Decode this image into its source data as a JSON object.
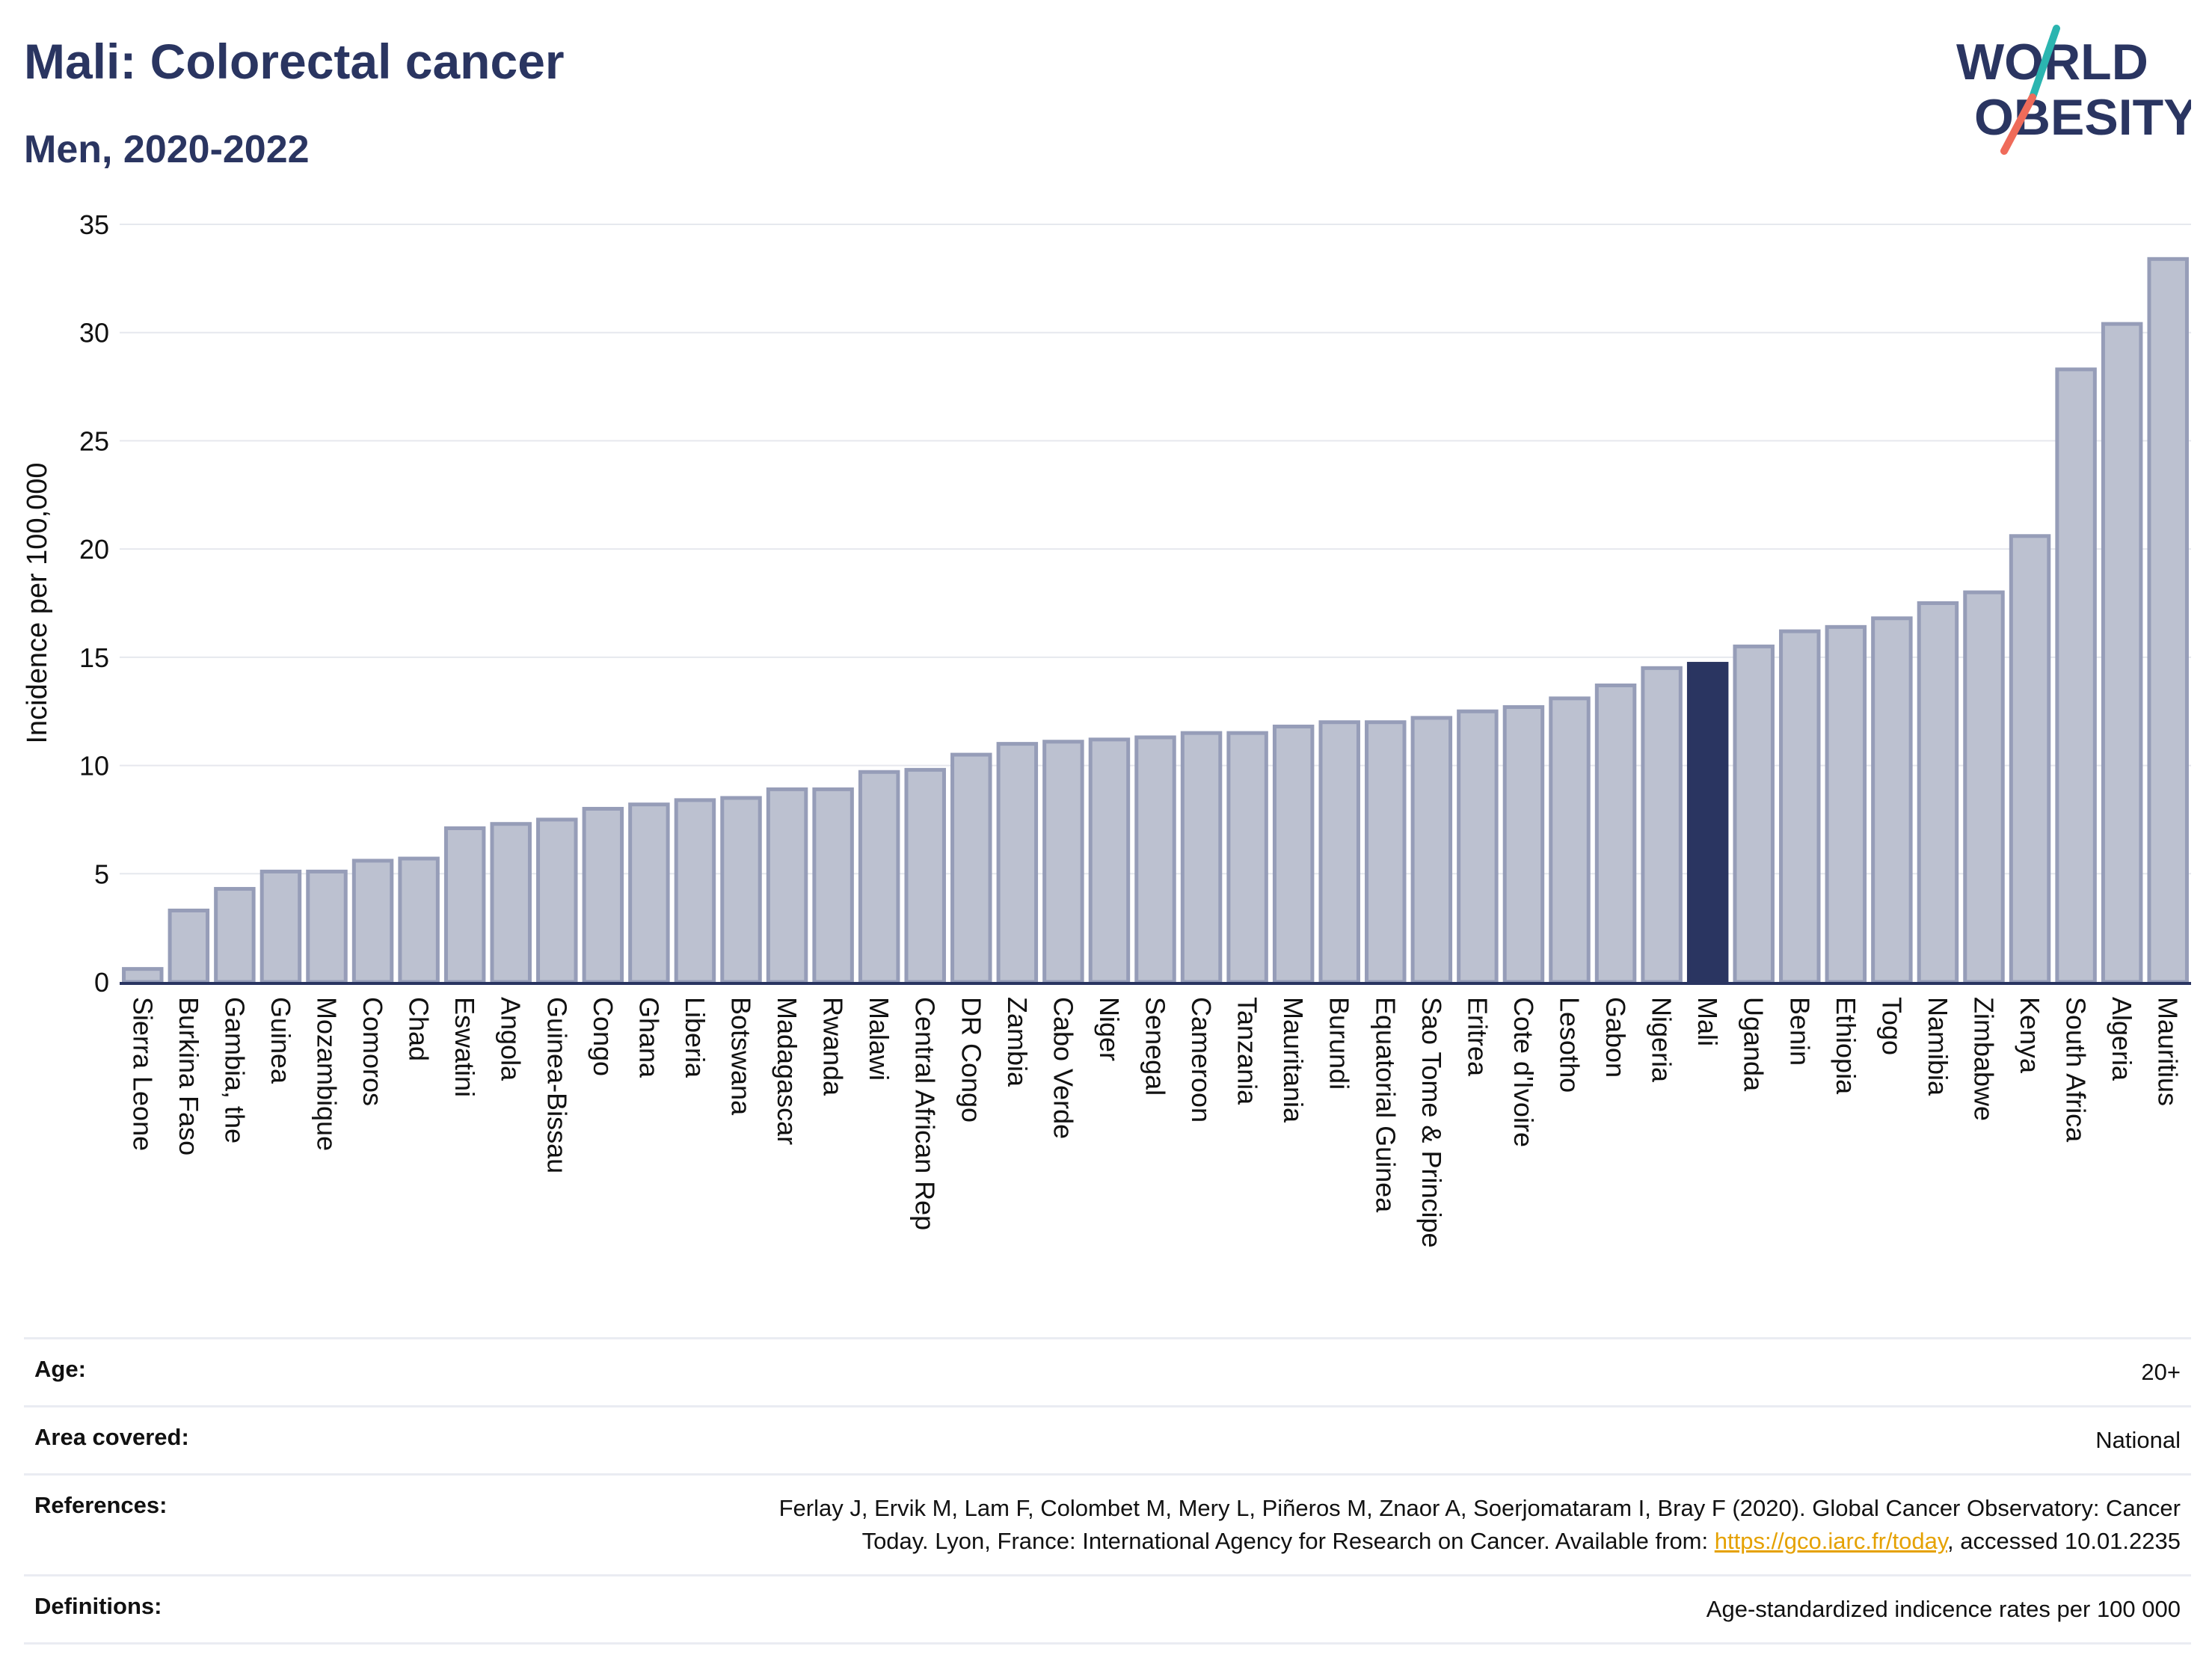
{
  "header": {
    "title": "Mali: Colorectal cancer",
    "subtitle": "Men, 2020-2022"
  },
  "logo": {
    "line1": "WORLD",
    "line2": "OBESITY"
  },
  "colors": {
    "bar": "#bcc1d0",
    "bar_stroke": "#969db8",
    "highlight": "#2a3561",
    "grid": "#e6e8ee",
    "axis": "#2a3561",
    "link": "#e5a100"
  },
  "chart_data": {
    "type": "bar",
    "ylabel": "Incidence per 100,000",
    "ylim": [
      0,
      35
    ],
    "yticks": [
      0,
      5,
      10,
      15,
      20,
      25,
      30,
      35
    ],
    "grid": true,
    "highlight": "Mali",
    "categories": [
      "Sierra Leone",
      "Burkina Faso",
      "Gambia, the",
      "Guinea",
      "Mozambique",
      "Comoros",
      "Chad",
      "Eswatini",
      "Angola",
      "Guinea-Bissau",
      "Congo",
      "Ghana",
      "Liberia",
      "Botswana",
      "Madagascar",
      "Rwanda",
      "Malawi",
      "Central African Rep",
      "DR Congo",
      "Zambia",
      "Cabo Verde",
      "Niger",
      "Senegal",
      "Cameroon",
      "Tanzania",
      "Mauritania",
      "Burundi",
      "Equatorial Guinea",
      "Sao Tome & Principe",
      "Eritrea",
      "Cote d'Ivoire",
      "Lesotho",
      "Gabon",
      "Nigeria",
      "Mali",
      "Uganda",
      "Benin",
      "Ethiopia",
      "Togo",
      "Namibia",
      "Zimbabwe",
      "Kenya",
      "South Africa",
      "Algeria",
      "Mauritius"
    ],
    "values": [
      0.6,
      3.3,
      4.3,
      5.1,
      5.1,
      5.6,
      5.7,
      7.1,
      7.3,
      7.5,
      8.0,
      8.2,
      8.4,
      8.5,
      8.9,
      8.9,
      9.7,
      9.8,
      10.5,
      11.0,
      11.1,
      11.2,
      11.3,
      11.5,
      11.5,
      11.8,
      12.0,
      12.0,
      12.2,
      12.5,
      12.7,
      13.1,
      13.7,
      14.5,
      14.7,
      15.5,
      16.2,
      16.4,
      16.8,
      17.5,
      18.0,
      20.6,
      28.3,
      30.4,
      33.4
    ]
  },
  "info": {
    "age": {
      "label": "Age:",
      "value": "20+"
    },
    "area": {
      "label": "Area covered:",
      "value": "National"
    },
    "references": {
      "label": "References:",
      "line1": "Ferlay J, Ervik M, Lam F, Colombet M, Mery L, Piñeros M, Znaor A, Soerjomataram I, Bray F (2020). Global Cancer Observatory: Cancer",
      "line2_pre": "Today. Lyon, France: International Agency for Research on Cancer. Available from: ",
      "link": "https://gco.iarc.fr/today",
      "line2_post": ", accessed 10.01.2235"
    },
    "definitions": {
      "label": "Definitions:",
      "value": "Age-standardized indicence rates per 100 000"
    }
  }
}
